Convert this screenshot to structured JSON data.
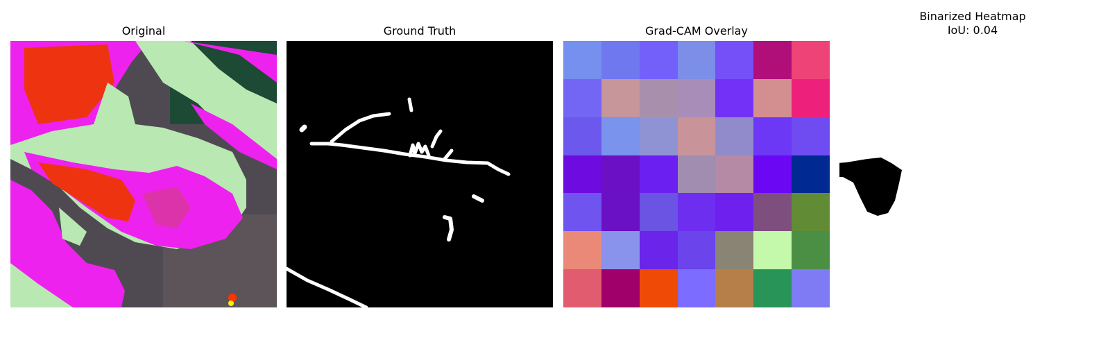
{
  "panels": {
    "original": {
      "title": "Original"
    },
    "ground_truth": {
      "title": "Ground Truth"
    },
    "gradcam": {
      "title": "Grad-CAM Overlay",
      "cells": [
        [
          "#7590ee",
          "#7078f0",
          "#7360fa",
          "#7c8ee8",
          "#7550f8",
          "#b00f7a",
          "#ee4377"
        ],
        [
          "#7466f4",
          "#c6969a",
          "#a890ad",
          "#a88db8",
          "#7331f7",
          "#d38f8f",
          "#ed217b"
        ],
        [
          "#6c58ec",
          "#7a93ec",
          "#8f93d4",
          "#c9939a",
          "#928bcb",
          "#6d37f6",
          "#6e4cf2"
        ],
        [
          "#6d0be0",
          "#6c10c6",
          "#6b1ff1",
          "#a08db0",
          "#b58aa5",
          "#6c07f4",
          "#002a91"
        ],
        [
          "#6f54f0",
          "#6a11c5",
          "#6b53e4",
          "#6d2ef0",
          "#6e20ee",
          "#7e4f7e",
          "#618c35"
        ],
        [
          "#ea8977",
          "#8993ec",
          "#6a24ea",
          "#6b44ec",
          "#8a8474",
          "#c4f8ab",
          "#4a8f44"
        ],
        [
          "#e05c6e",
          "#9f006a",
          "#ef4b07",
          "#7c6cff",
          "#b67f4a",
          "#289458",
          "#7f7bf5"
        ]
      ]
    },
    "binarized": {
      "title": "Binarized Heatmap\nIoU: 0.04"
    }
  }
}
